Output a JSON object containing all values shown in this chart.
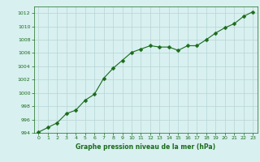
{
  "x": [
    0,
    1,
    2,
    3,
    4,
    5,
    6,
    7,
    8,
    9,
    10,
    11,
    12,
    13,
    14,
    15,
    16,
    17,
    18,
    19,
    20,
    21,
    22,
    23
  ],
  "y": [
    994.1,
    994.8,
    995.5,
    996.9,
    997.4,
    998.9,
    999.8,
    1002.2,
    1003.7,
    1004.9,
    1006.1,
    1006.6,
    1007.1,
    1006.9,
    1006.9,
    1006.4,
    1007.1,
    1007.1,
    1008.0,
    1009.0,
    1009.8,
    1010.4,
    1011.5,
    1012.2
  ],
  "line_color": "#1a6b1a",
  "marker": "D",
  "marker_size": 2.5,
  "bg_color": "#d8f0f0",
  "grid_color": "#b8d4d4",
  "xlabel": "Graphe pression niveau de la mer (hPa)",
  "xlabel_color": "#1a6b1a",
  "tick_color": "#1a6b1a",
  "ylim": [
    994,
    1013
  ],
  "xlim": [
    -0.5,
    23.5
  ],
  "yticks": [
    994,
    996,
    998,
    1000,
    1002,
    1004,
    1006,
    1008,
    1010,
    1012
  ],
  "xticks": [
    0,
    1,
    2,
    3,
    4,
    5,
    6,
    7,
    8,
    9,
    10,
    11,
    12,
    13,
    14,
    15,
    16,
    17,
    18,
    19,
    20,
    21,
    22,
    23
  ]
}
